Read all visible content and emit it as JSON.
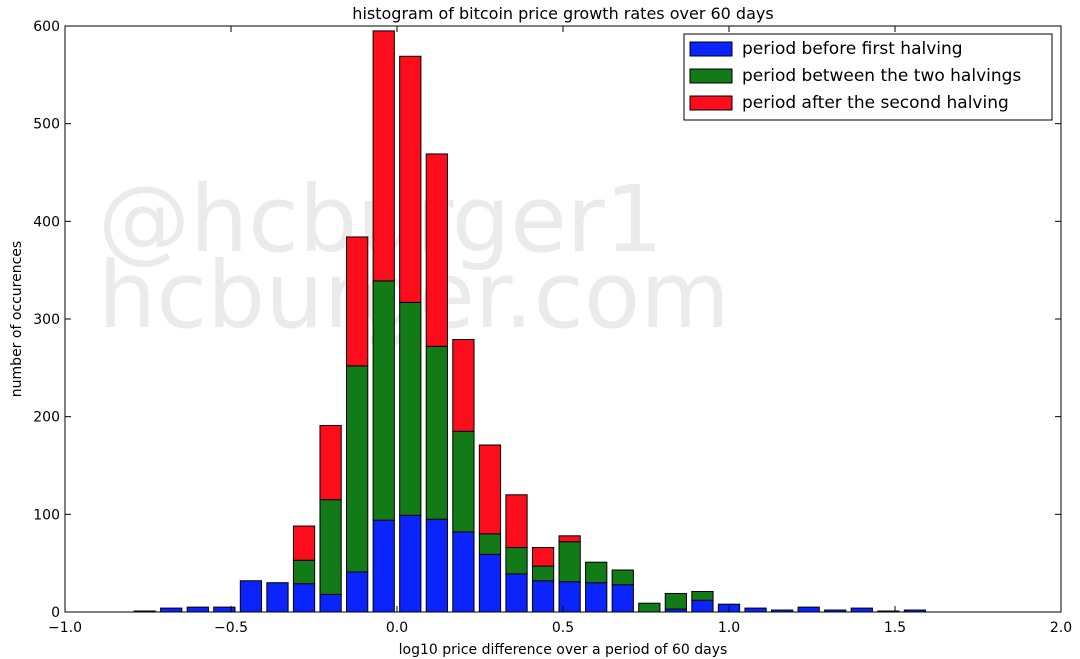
{
  "chart_data": {
    "type": "bar",
    "stacked": true,
    "title": "histogram of bitcoin price growth rates over 60 days",
    "xlabel": "log10 price difference over a period of 60 days",
    "ylabel": "number of occurences",
    "xlim": [
      -1.0,
      2.0
    ],
    "ylim": [
      0,
      600
    ],
    "xticks": [
      -1.0,
      -0.5,
      0.0,
      0.5,
      1.0,
      1.5,
      2.0
    ],
    "xtick_labels": [
      "−1.0",
      "−0.5",
      "0.0",
      "0.5",
      "1.0",
      "1.5",
      "2.0"
    ],
    "yticks": [
      0,
      100,
      200,
      300,
      400,
      500,
      600
    ],
    "ytick_labels": [
      "0",
      "100",
      "200",
      "300",
      "400",
      "500",
      "600"
    ],
    "bin_width": 0.08,
    "bar_width": 0.064,
    "grid": false,
    "legend_position": "top-right",
    "x": [
      -0.76,
      -0.68,
      -0.6,
      -0.52,
      -0.44,
      -0.36,
      -0.28,
      -0.2,
      -0.12,
      -0.04,
      0.04,
      0.12,
      0.2,
      0.28,
      0.36,
      0.44,
      0.52,
      0.6,
      0.68,
      0.76,
      0.84,
      0.92,
      1.0,
      1.08,
      1.16,
      1.24,
      1.32,
      1.4,
      1.48,
      1.56
    ],
    "series": [
      {
        "name": "period before first halving",
        "color": "#0b24fb",
        "values": [
          1,
          4,
          5,
          5,
          32,
          30,
          29,
          18,
          41,
          94,
          99,
          95,
          82,
          59,
          39,
          32,
          31,
          30,
          28,
          0,
          3,
          12,
          8,
          4,
          2,
          5,
          2,
          4,
          1,
          2
        ]
      },
      {
        "name": "period between the two halvings",
        "color": "#127a17",
        "values": [
          0,
          0,
          0,
          0,
          0,
          0,
          24,
          97,
          211,
          245,
          218,
          177,
          103,
          21,
          27,
          15,
          41,
          21,
          15,
          9,
          16,
          9,
          0,
          0,
          0,
          0,
          0,
          0,
          0,
          0
        ]
      },
      {
        "name": "period after the second halving",
        "color": "#fc0d1b",
        "values": [
          0,
          0,
          0,
          0,
          0,
          0,
          35,
          76,
          132,
          256,
          252,
          197,
          94,
          91,
          54,
          19,
          6,
          0,
          0,
          0,
          0,
          0,
          0,
          0,
          0,
          0,
          0,
          0,
          0,
          0
        ]
      }
    ]
  },
  "watermark": {
    "line1": "@hcburger1",
    "line2": "hcburger.com"
  }
}
